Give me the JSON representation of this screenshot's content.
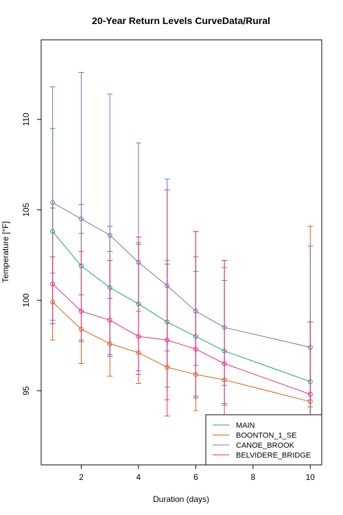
{
  "chart_data": {
    "type": "line",
    "title": "20-Year Return Levels CurveData/Rural",
    "xlabel": "Duration (days)",
    "ylabel": "Temperature [°F]",
    "xlim": [
      0.6,
      10.4
    ],
    "ylim": [
      90.9,
      114.4
    ],
    "x_ticks": [
      2,
      4,
      6,
      8,
      10
    ],
    "y_ticks": [
      95,
      100,
      105,
      110
    ],
    "x": [
      1,
      2,
      3,
      4,
      5,
      6,
      7,
      10
    ],
    "legend_position": "bottom-right",
    "grid": false,
    "series": [
      {
        "name": "MAIN",
        "color": "#1b9e77",
        "values": [
          103.8,
          101.9,
          100.7,
          99.8,
          98.8,
          98.0,
          97.2,
          95.5
        ],
        "lower": [
          98.9,
          97.7,
          97.0,
          96.1,
          95.2,
          94.7,
          94.3,
          94.1
        ],
        "upper": [
          109.5,
          105.3,
          104.1,
          103.1,
          102.0,
          101.6,
          101.1,
          98.8
        ]
      },
      {
        "name": "BOONTON_1_SE",
        "color": "#d95f02",
        "values": [
          99.9,
          98.4,
          97.6,
          97.1,
          96.3,
          95.9,
          95.6,
          94.4
        ],
        "lower": [
          97.8,
          96.5,
          95.8,
          95.4,
          94.5,
          93.9,
          93.6,
          92.4
        ],
        "upper": [
          105.1,
          103.7,
          102.7,
          103.2,
          102.2,
          102.4,
          101.8,
          104.1
        ]
      },
      {
        "name": "CANOE_BROOK",
        "color": "#7570b3",
        "values": [
          105.4,
          104.5,
          103.6,
          102.1,
          100.8,
          99.4,
          98.5,
          97.4
        ],
        "lower": [
          101.5,
          100.3,
          100.1,
          99.4,
          97.2,
          96.4,
          95.3,
          93.6
        ],
        "upper": [
          111.8,
          112.6,
          111.4,
          108.7,
          106.7,
          103.8,
          102.2,
          103.0
        ]
      },
      {
        "name": "BELVIDERE_BRIDGE",
        "color": "#e7298a",
        "values": [
          100.9,
          99.4,
          98.9,
          98.0,
          97.8,
          97.3,
          96.5,
          94.8
        ],
        "lower": [
          98.7,
          97.8,
          96.9,
          95.9,
          93.6,
          94.6,
          94.2,
          93.0
        ],
        "upper": [
          102.4,
          102.7,
          102.2,
          103.5,
          106.1,
          103.8,
          102.2,
          98.8
        ]
      }
    ]
  }
}
